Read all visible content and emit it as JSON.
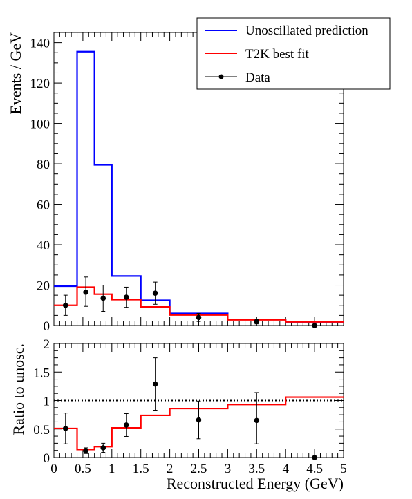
{
  "chart_data": [
    {
      "type": "line",
      "subtype": "step-histogram-with-data-points",
      "title": "",
      "xlabel": "",
      "ylabel": "Events / GeV",
      "xlim": [
        0,
        5
      ],
      "ylim": [
        0,
        145
      ],
      "x_ticks": [
        0,
        0.5,
        1,
        1.5,
        2,
        2.5,
        3,
        3.5,
        4,
        4.5,
        5
      ],
      "y_ticks": [
        0,
        20,
        40,
        60,
        80,
        100,
        120,
        140
      ],
      "y_tick_labels": [
        "0",
        "20",
        "40",
        "60",
        "80",
        "100",
        "120",
        "140"
      ],
      "bin_edges": [
        0,
        0.4,
        0.7,
        1.0,
        1.5,
        2.0,
        3.0,
        4.0,
        5.0
      ],
      "series": [
        {
          "name": "Unoscillated prediction",
          "kind": "step",
          "color": "#0000ff",
          "values": [
            19.5,
            135.5,
            79.5,
            24.5,
            12.5,
            6.0,
            3.0,
            1.8
          ]
        },
        {
          "name": "T2K best fit",
          "kind": "step",
          "color": "#ff0000",
          "values": [
            10.0,
            19.0,
            15.5,
            12.8,
            9.2,
            5.2,
            2.8,
            1.8
          ]
        },
        {
          "name": "Data",
          "kind": "points",
          "color": "#000000",
          "points": [
            {
              "x": 0.2,
              "y": 10.0,
              "err_low": 5.0,
              "err_high": 5.0
            },
            {
              "x": 0.55,
              "y": 16.5,
              "err_low": 7.0,
              "err_high": 7.5
            },
            {
              "x": 0.85,
              "y": 13.5,
              "err_low": 6.5,
              "err_high": 6.5
            },
            {
              "x": 1.25,
              "y": 14.0,
              "err_low": 5.0,
              "err_high": 5.0
            },
            {
              "x": 1.75,
              "y": 16.0,
              "err_low": 5.5,
              "err_high": 5.5
            },
            {
              "x": 2.5,
              "y": 4.0,
              "err_low": 2.0,
              "err_high": 2.0
            },
            {
              "x": 3.5,
              "y": 2.0,
              "err_low": 1.2,
              "err_high": 1.2
            },
            {
              "x": 4.5,
              "y": 0.0,
              "err_low": 0.0,
              "err_high": 0.0
            }
          ]
        }
      ],
      "legend": {
        "position": "top-right",
        "entries": [
          "Unoscillated prediction",
          "T2K best fit",
          "Data"
        ]
      }
    },
    {
      "type": "line",
      "subtype": "ratio-panel",
      "title": "",
      "xlabel": "Reconstructed Energy (GeV)",
      "ylabel": "Ratio to unosc.",
      "xlim": [
        0,
        5
      ],
      "ylim": [
        0,
        2
      ],
      "x_ticks": [
        0,
        0.5,
        1,
        1.5,
        2,
        2.5,
        3,
        3.5,
        4,
        4.5,
        5
      ],
      "x_tick_labels": [
        "0",
        "0.5",
        "1",
        "1.5",
        "2",
        "2.5",
        "3",
        "3.5",
        "4",
        "4.5",
        "5"
      ],
      "y_ticks": [
        0,
        0.5,
        1,
        1.5,
        2
      ],
      "y_tick_labels": [
        "0",
        "0.5",
        "1",
        "1.5",
        "2"
      ],
      "reference_line": {
        "y": 1,
        "style": "dotted",
        "color": "#000000"
      },
      "bin_edges": [
        0,
        0.4,
        0.7,
        1.0,
        1.5,
        2.0,
        3.0,
        4.0,
        5.0
      ],
      "series": [
        {
          "name": "T2K best fit",
          "kind": "step",
          "color": "#ff0000",
          "values": [
            0.51,
            0.14,
            0.19,
            0.52,
            0.74,
            0.86,
            0.93,
            1.06
          ]
        },
        {
          "name": "Data",
          "kind": "points",
          "color": "#000000",
          "points": [
            {
              "x": 0.2,
              "y": 0.51,
              "err_low": 0.27,
              "err_high": 0.27
            },
            {
              "x": 0.55,
              "y": 0.12,
              "err_low": 0.05,
              "err_high": 0.05
            },
            {
              "x": 0.85,
              "y": 0.17,
              "err_low": 0.08,
              "err_high": 0.08
            },
            {
              "x": 1.25,
              "y": 0.57,
              "err_low": 0.2,
              "err_high": 0.2
            },
            {
              "x": 1.75,
              "y": 1.29,
              "err_low": 0.46,
              "err_high": 0.46
            },
            {
              "x": 2.5,
              "y": 0.66,
              "err_low": 0.33,
              "err_high": 0.33
            },
            {
              "x": 3.5,
              "y": 0.65,
              "err_low": 0.41,
              "err_high": 0.49
            },
            {
              "x": 4.5,
              "y": 0.0,
              "err_low": 0.0,
              "err_high": 0.0
            }
          ]
        }
      ]
    }
  ]
}
